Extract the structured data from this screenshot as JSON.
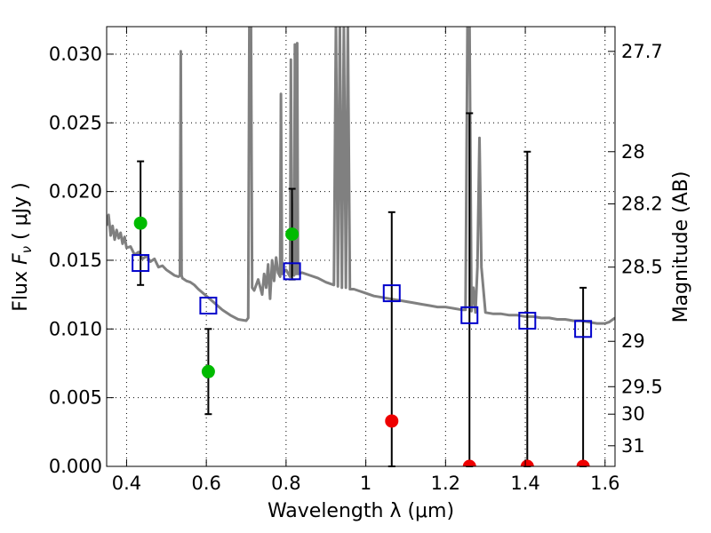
{
  "chart_data": {
    "type": "scatter",
    "title": "",
    "xlabel": "Wavelength  λ (μm)",
    "ylabel": "Flux  F_ν  ( μJy )",
    "ylabel_parts": {
      "prefix": "Flux  ",
      "symbol": "F",
      "subscript": "ν",
      "suffix": "  ( μJy )"
    },
    "y2label": "Magnitude (AB)",
    "xlim": [
      0.35,
      1.625
    ],
    "ylim": [
      0.0,
      0.032
    ],
    "grid": true,
    "x_ticks": [
      {
        "value": 0.4,
        "label": "0.4"
      },
      {
        "value": 0.6,
        "label": "0.6"
      },
      {
        "value": 0.8,
        "label": "0.8"
      },
      {
        "value": 1.0,
        "label": "1"
      },
      {
        "value": 1.2,
        "label": "1.2"
      },
      {
        "value": 1.4,
        "label": "1.4"
      },
      {
        "value": 1.6,
        "label": "1.6"
      }
    ],
    "y_ticks": [
      {
        "value": 0.0,
        "label": "0.000"
      },
      {
        "value": 0.005,
        "label": "0.005"
      },
      {
        "value": 0.01,
        "label": "0.010"
      },
      {
        "value": 0.015,
        "label": "0.015"
      },
      {
        "value": 0.02,
        "label": "0.020"
      },
      {
        "value": 0.025,
        "label": "0.025"
      },
      {
        "value": 0.03,
        "label": "0.030"
      }
    ],
    "y2_ticks": [
      {
        "label": "27.7",
        "flux": 0.0302
      },
      {
        "label": "28",
        "flux": 0.0229
      },
      {
        "label": "28.2",
        "flux": 0.0191
      },
      {
        "label": "28.5",
        "flux": 0.0145
      },
      {
        "label": "29",
        "flux": 0.0091
      },
      {
        "label": "29.5",
        "flux": 0.0058
      },
      {
        "label": "30",
        "flux": 0.0038
      },
      {
        "label": "31",
        "flux": 0.0015
      }
    ],
    "colors": {
      "template": "#808080",
      "model": "#0000cc",
      "detected": "#00bb00",
      "nondetected": "#ee0000",
      "errorbar": "#000000",
      "grid": "#000000"
    },
    "series": [
      {
        "kind": "line",
        "x": [
          0.35,
          0.355,
          0.36,
          0.365,
          0.37,
          0.375,
          0.38,
          0.385,
          0.39,
          0.395,
          0.4,
          0.41,
          0.42,
          0.43,
          0.44,
          0.45,
          0.46,
          0.47,
          0.48,
          0.49,
          0.5,
          0.51,
          0.52,
          0.53,
          0.534,
          0.536,
          0.538,
          0.54,
          0.55,
          0.56,
          0.57,
          0.58,
          0.6,
          0.62,
          0.64,
          0.66,
          0.68,
          0.7,
          0.705,
          0.708,
          0.712,
          0.715,
          0.72,
          0.73,
          0.74,
          0.745,
          0.75,
          0.755,
          0.76,
          0.765,
          0.77,
          0.775,
          0.78,
          0.785,
          0.787,
          0.79,
          0.8,
          0.81,
          0.812,
          0.815,
          0.82,
          0.822,
          0.825,
          0.828,
          0.83,
          0.84,
          0.86,
          0.88,
          0.9,
          0.92,
          0.925,
          0.93,
          0.935,
          0.94,
          0.945,
          0.95,
          0.955,
          0.96,
          0.97,
          0.98,
          1.0,
          1.02,
          1.04,
          1.06,
          1.08,
          1.1,
          1.12,
          1.14,
          1.16,
          1.18,
          1.2,
          1.22,
          1.24,
          1.25,
          1.255,
          1.26,
          1.265,
          1.27,
          1.275,
          1.28,
          1.285,
          1.29,
          1.3,
          1.32,
          1.34,
          1.36,
          1.38,
          1.4,
          1.42,
          1.44,
          1.46,
          1.48,
          1.5,
          1.52,
          1.54,
          1.56,
          1.58,
          1.6,
          1.61,
          1.625
        ],
        "y": [
          0.0175,
          0.0183,
          0.0168,
          0.0175,
          0.0165,
          0.0172,
          0.0166,
          0.017,
          0.0162,
          0.0167,
          0.0159,
          0.016,
          0.0154,
          0.0156,
          0.0151,
          0.0153,
          0.0149,
          0.0151,
          0.0145,
          0.0146,
          0.0143,
          0.0141,
          0.0139,
          0.0138,
          0.0139,
          0.0302,
          0.0139,
          0.0137,
          0.0135,
          0.0134,
          0.0132,
          0.0129,
          0.0124,
          0.0119,
          0.0114,
          0.011,
          0.0107,
          0.0106,
          0.0108,
          0.0322,
          0.0322,
          0.013,
          0.0128,
          0.0136,
          0.0125,
          0.014,
          0.013,
          0.0147,
          0.0122,
          0.015,
          0.0135,
          0.0152,
          0.0141,
          0.0138,
          0.0271,
          0.014,
          0.0143,
          0.0138,
          0.0296,
          0.014,
          0.0139,
          0.0307,
          0.014,
          0.0308,
          0.014,
          0.0141,
          0.0139,
          0.0137,
          0.0134,
          0.0132,
          0.0322,
          0.0131,
          0.0322,
          0.013,
          0.0322,
          0.013,
          0.0322,
          0.0129,
          0.0129,
          0.0128,
          0.0126,
          0.0124,
          0.0123,
          0.0122,
          0.0121,
          0.012,
          0.0119,
          0.0118,
          0.0117,
          0.0116,
          0.0116,
          0.0115,
          0.0114,
          0.0114,
          0.0322,
          0.0322,
          0.0113,
          0.013,
          0.0112,
          0.0145,
          0.0239,
          0.0145,
          0.0112,
          0.0111,
          0.0111,
          0.011,
          0.011,
          0.0109,
          0.0109,
          0.0108,
          0.0108,
          0.0107,
          0.0107,
          0.0106,
          0.0106,
          0.0105,
          0.0104,
          0.0104,
          0.0105,
          0.0108
        ]
      },
      {
        "kind": "model",
        "x": [
          0.435,
          0.605,
          0.815,
          1.065,
          1.26,
          1.405,
          1.545
        ],
        "y": [
          0.0148,
          0.0117,
          0.0142,
          0.0126,
          0.011,
          0.0106,
          0.01
        ]
      },
      {
        "kind": "detected",
        "x": [
          0.435,
          0.605,
          0.815
        ],
        "y": [
          0.0177,
          0.0069,
          0.0169
        ],
        "err": [
          0.0045,
          0.0031,
          0.0033
        ]
      },
      {
        "kind": "nondetected",
        "x": [
          1.065,
          1.26,
          1.405,
          1.545
        ],
        "y": [
          0.0033,
          0.0,
          0.0,
          0.0
        ],
        "err": [
          0.0152,
          0.0257,
          0.0229,
          0.013
        ]
      }
    ]
  }
}
